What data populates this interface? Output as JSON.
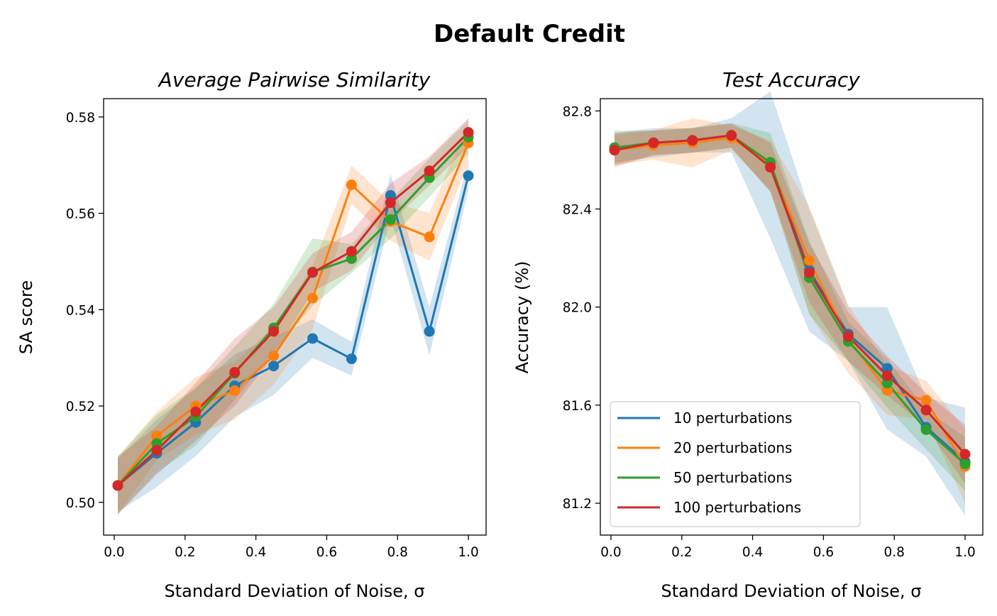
{
  "figure": {
    "title": "Default Credit",
    "colors": {
      "10 perturbations": "#1f77b4",
      "20 perturbations": "#ff7f0e",
      "50 perturbations": "#2ca02c",
      "100 perturbations": "#d62728"
    }
  },
  "chart_data": [
    {
      "type": "line",
      "title": "Average Pairwise Similarity",
      "xlabel": "Standard Deviation of Noise, σ",
      "ylabel": "SA score",
      "xlim": [
        -0.03,
        1.05
      ],
      "ylim": [
        0.4932,
        0.5838
      ],
      "xticks": [
        0.0,
        0.2,
        0.4,
        0.6,
        0.8,
        1.0
      ],
      "xtick_labels": [
        "0.0",
        "0.2",
        "0.4",
        "0.6",
        "0.8",
        "1.0"
      ],
      "yticks": [
        0.5,
        0.52,
        0.54,
        0.56,
        0.58
      ],
      "ytick_labels": [
        "0.50",
        "0.52",
        "0.54",
        "0.56",
        "0.58"
      ],
      "grid": false,
      "shaded_band": "± spread",
      "x": [
        0.01,
        0.12,
        0.23,
        0.34,
        0.45,
        0.56,
        0.67,
        0.78,
        0.89,
        1.0
      ],
      "series": [
        {
          "name": "10 perturbations",
          "color": "#1f77b4",
          "values": [
            0.5035,
            0.5102,
            0.5166,
            0.5242,
            0.5283,
            0.534,
            0.5298,
            0.5637,
            0.5355,
            0.5678
          ],
          "band": [
            0.0055,
            0.007,
            0.007,
            0.0065,
            0.006,
            0.004,
            0.0035,
            0.0045,
            0.005,
            0.003
          ]
        },
        {
          "name": "20 perturbations",
          "color": "#ff7f0e",
          "values": [
            0.5035,
            0.5138,
            0.52,
            0.5232,
            0.5304,
            0.5424,
            0.5659,
            0.5583,
            0.5551,
            0.5746
          ],
          "band": [
            0.006,
            0.005,
            0.006,
            0.006,
            0.006,
            0.0065,
            0.004,
            0.004,
            0.005,
            0.004
          ]
        },
        {
          "name": "50 perturbations",
          "color": "#2ca02c",
          "values": [
            0.5035,
            0.5122,
            0.5178,
            0.5268,
            0.5362,
            0.5478,
            0.5506,
            0.5587,
            0.5674,
            0.5758
          ],
          "band": [
            0.006,
            0.006,
            0.006,
            0.0055,
            0.005,
            0.007,
            0.003,
            0.004,
            0.004,
            0.0035
          ]
        },
        {
          "name": "100 perturbations",
          "color": "#d62728",
          "values": [
            0.5035,
            0.5108,
            0.5188,
            0.527,
            0.5355,
            0.5477,
            0.5521,
            0.5622,
            0.5688,
            0.5768
          ],
          "band": [
            0.006,
            0.005,
            0.006,
            0.007,
            0.005,
            0.004,
            0.004,
            0.004,
            0.003,
            0.003
          ]
        }
      ]
    },
    {
      "type": "line",
      "title": "Test Accuracy",
      "xlabel": "Standard Deviation of Noise, σ",
      "ylabel": "Accuracy (%)",
      "xlim": [
        -0.03,
        1.05
      ],
      "ylim": [
        81.07,
        82.85
      ],
      "xticks": [
        0.0,
        0.2,
        0.4,
        0.6,
        0.8,
        1.0
      ],
      "xtick_labels": [
        "0.0",
        "0.2",
        "0.4",
        "0.6",
        "0.8",
        "1.0"
      ],
      "yticks": [
        81.2,
        81.6,
        82.0,
        82.4,
        82.8
      ],
      "ytick_labels": [
        "81.2",
        "81.6",
        "82.0",
        "82.4",
        "82.8"
      ],
      "grid": false,
      "legend": "lower-left",
      "shaded_band": "± spread",
      "x": [
        0.01,
        0.12,
        0.23,
        0.34,
        0.45,
        0.56,
        0.67,
        0.78,
        0.89,
        1.0
      ],
      "series": [
        {
          "name": "10 perturbations",
          "color": "#1f77b4",
          "values": [
            82.65,
            82.67,
            82.68,
            82.7,
            82.58,
            82.15,
            81.89,
            81.75,
            81.51,
            81.37
          ],
          "band": [
            0.06,
            0.06,
            0.05,
            0.07,
            0.3,
            0.25,
            0.11,
            0.25,
            0.12,
            0.22
          ]
        },
        {
          "name": "20 perturbations",
          "color": "#ff7f0e",
          "values": [
            82.64,
            82.66,
            82.67,
            82.69,
            82.58,
            82.19,
            81.87,
            81.66,
            81.62,
            81.35
          ],
          "band": [
            0.06,
            0.06,
            0.1,
            0.05,
            0.1,
            0.22,
            0.14,
            0.1,
            0.08,
            0.15
          ]
        },
        {
          "name": "50 perturbations",
          "color": "#2ca02c",
          "values": [
            82.65,
            82.67,
            82.68,
            82.7,
            82.59,
            82.12,
            81.86,
            81.69,
            81.5,
            81.36
          ],
          "band": [
            0.07,
            0.05,
            0.05,
            0.05,
            0.12,
            0.15,
            0.08,
            0.1,
            0.08,
            0.11
          ]
        },
        {
          "name": "100 perturbations",
          "color": "#d62728",
          "values": [
            82.64,
            82.67,
            82.68,
            82.7,
            82.57,
            82.14,
            81.88,
            81.72,
            81.58,
            81.4
          ],
          "band": [
            0.07,
            0.05,
            0.05,
            0.05,
            0.1,
            0.12,
            0.1,
            0.08,
            0.07,
            0.12
          ]
        }
      ]
    }
  ]
}
